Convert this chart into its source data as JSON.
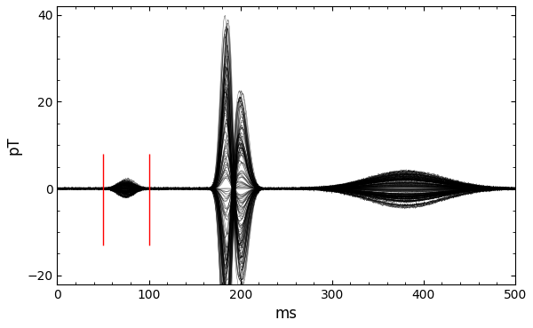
{
  "xlim": [
    0,
    500
  ],
  "ylim": [
    -22,
    42
  ],
  "yticks": [
    -20,
    0,
    20,
    40
  ],
  "xticks": [
    0,
    100,
    200,
    300,
    400,
    500
  ],
  "xlabel": "ms",
  "ylabel": "pT",
  "red_line_x1": 50,
  "red_line_x2": 100,
  "red_line_ymin": -13,
  "red_line_ymax": 8,
  "n_channels": 150,
  "background_color": "#ffffff",
  "line_color": "#000000",
  "line_alpha": 0.55,
  "line_width": 0.4,
  "figsize": [
    6.0,
    3.69
  ],
  "dpi": 100
}
